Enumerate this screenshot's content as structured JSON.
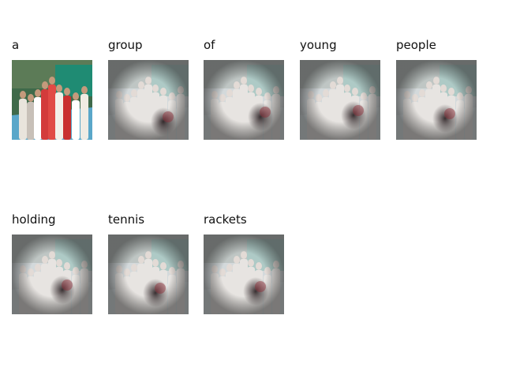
{
  "caption_words": [
    "a",
    "group",
    "of",
    "young",
    "people",
    "holding",
    "tennis",
    "rackets"
  ],
  "panels": [
    {
      "word": "a",
      "kind": "original"
    },
    {
      "word": "group",
      "kind": "attention"
    },
    {
      "word": "of",
      "kind": "attention"
    },
    {
      "word": "young",
      "kind": "attention"
    },
    {
      "word": "people",
      "kind": "attention"
    },
    {
      "word": "holding",
      "kind": "attention"
    },
    {
      "word": "tennis",
      "kind": "attention"
    },
    {
      "word": "rackets",
      "kind": "attention"
    }
  ]
}
